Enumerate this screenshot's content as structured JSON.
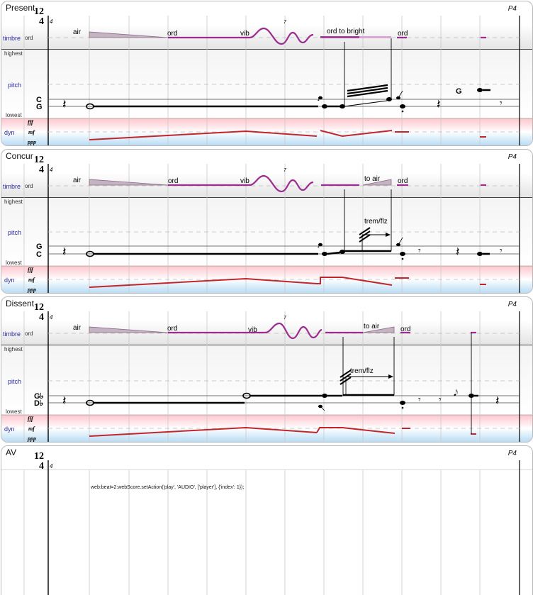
{
  "time_signature": {
    "top": "12",
    "bottom": "4",
    "beat_label": "4"
  },
  "rows": {
    "timbre": "timbre",
    "ord": "ord",
    "highest": "highest",
    "pitch": "pitch",
    "lowest": "lowest",
    "dyn": "dyn",
    "fff": "fff",
    "mf": "mf",
    "ppp": "ppp"
  },
  "bar_number": "7",
  "panels": [
    {
      "title": "Present",
      "part": "P4",
      "timbre_labels": {
        "air": "air",
        "ord1": "ord",
        "vib": "vib",
        "ord2": "ord to bright",
        "ord3": "ord"
      },
      "pitch_labels": [
        "C",
        "G"
      ],
      "inline_pitch": "G"
    },
    {
      "title": "Concur",
      "part": "P4",
      "timbre_labels": {
        "air": "air",
        "ord1": "ord",
        "vib": "vib",
        "toair": "to air",
        "ord3": "ord"
      },
      "pitch_labels": [
        "G",
        "C"
      ],
      "annotation": "trem/flz"
    },
    {
      "title": "Dissent",
      "part": "P4",
      "timbre_labels": {
        "air": "air",
        "ord1": "ord",
        "vib": "vib",
        "toair": "to air",
        "ord3": "ord"
      },
      "pitch_labels": [
        "G♭",
        "D♭"
      ],
      "annotation": "trem/flz"
    },
    {
      "title": "AV",
      "part": "P4",
      "script_text": "web:beat=2:webScore.setAction('play', 'AUDIO', ['player'], {'index': 1});"
    }
  ],
  "colors": {
    "purple": "#9b2d91",
    "dyn_red": "#c0272d",
    "label_blue": "#2b2b9c",
    "grid": "#c8c8c8"
  }
}
